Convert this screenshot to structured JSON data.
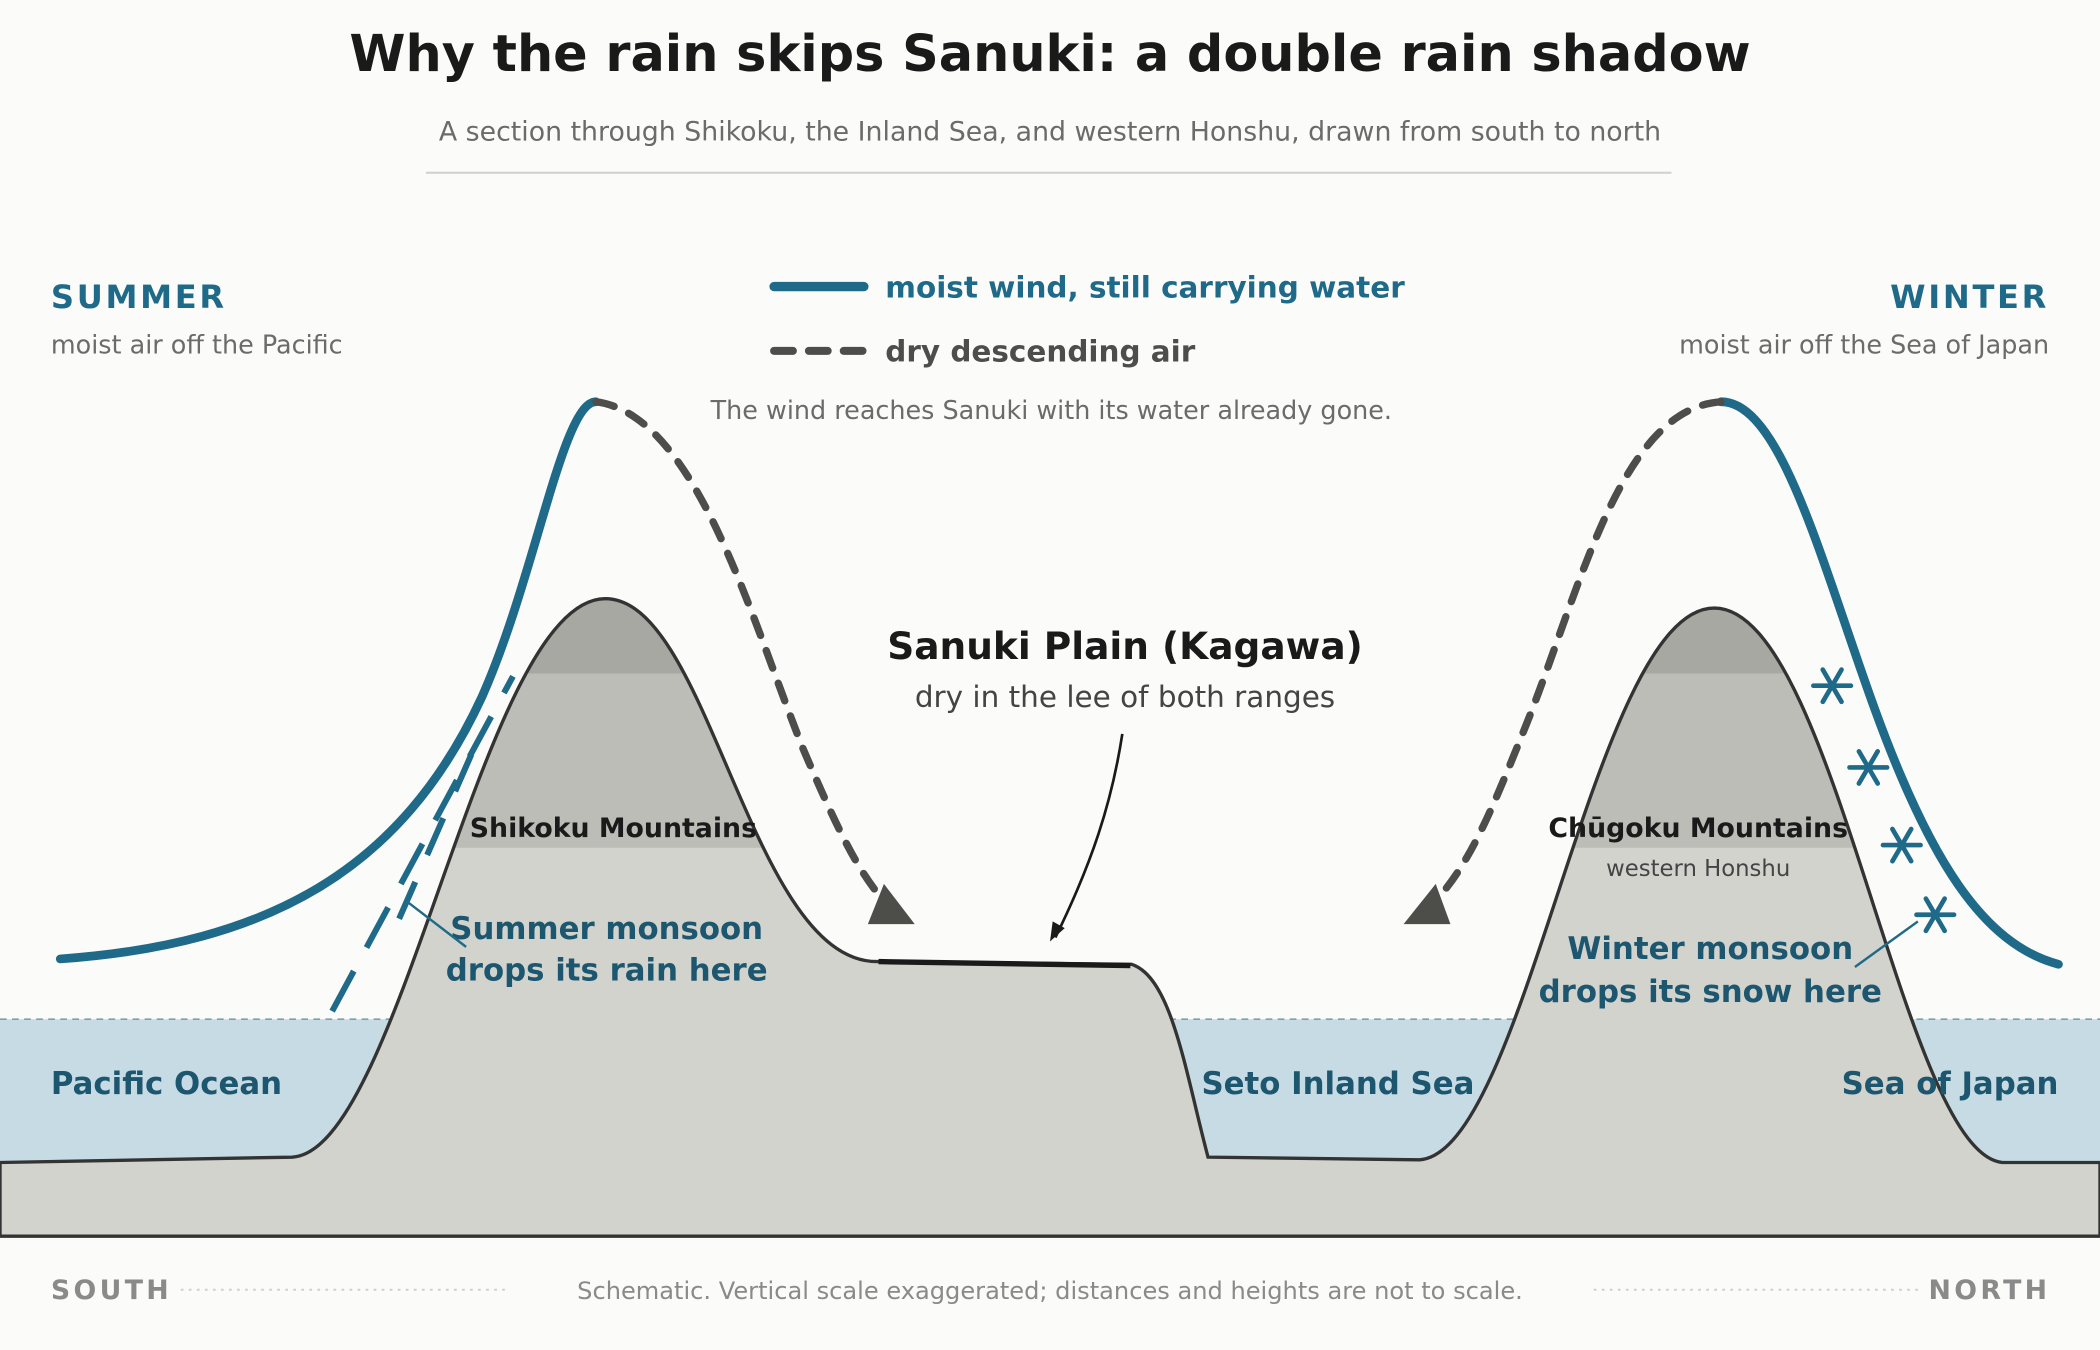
{
  "header": {
    "title": "Why the rain skips Sanuki: a double rain shadow",
    "subtitle": "A section through Shikoku, the Inland Sea, and western Honshu, drawn from south to north"
  },
  "legend": {
    "moist": "moist wind, still carrying water",
    "dry": "dry descending air"
  },
  "summer": {
    "label": "SUMMER",
    "note": "moist air off the Pacific"
  },
  "winter": {
    "label": "WINTER",
    "note": "moist air off the Sea of Japan"
  },
  "caption": "The wind reaches Sanuki with its water already gone.",
  "plain": {
    "title": "Sanuki Plain (Kagawa)",
    "note": "dry in the lee of both ranges"
  },
  "mountains": [
    {
      "name": "Shikoku Mountains"
    },
    {
      "name": "Chūgoku Mountains",
      "note": "western Honshu"
    }
  ],
  "annotations": [
    {
      "lines": [
        "Summer monsoon",
        "drops its rain here"
      ]
    },
    {
      "lines": [
        "Winter monsoon",
        "drops its snow here"
      ]
    }
  ],
  "water": [
    "Pacific Ocean",
    "Seto Inland Sea",
    "Sea of Japan"
  ],
  "footer": {
    "south": "SOUTH",
    "note": "Schematic. Vertical scale exaggerated; distances and heights are not to scale.",
    "north": "NORTH"
  }
}
